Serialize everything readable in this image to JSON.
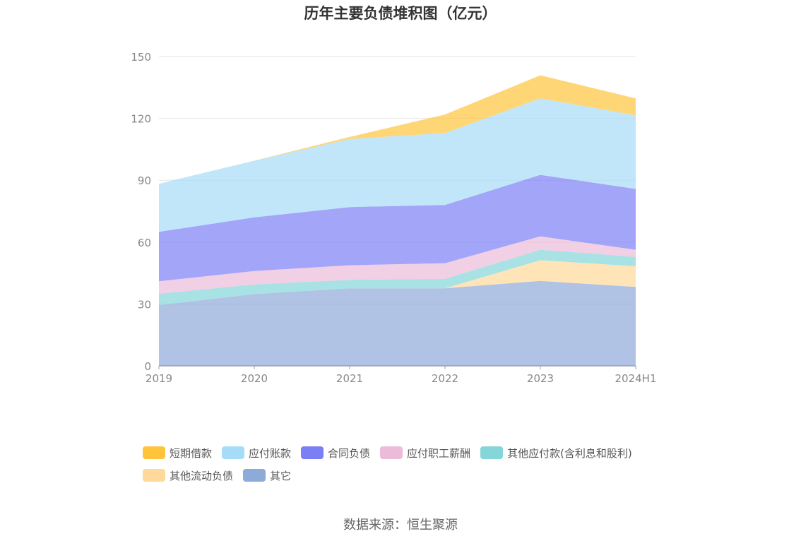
{
  "chart_data": {
    "type": "area",
    "stacked": true,
    "title": "历年主要负债堆积图（亿元）",
    "source": "数据来源：恒生聚源",
    "x": [
      "2019",
      "2020",
      "2021",
      "2022",
      "2023",
      "2024H1"
    ],
    "ylim": [
      0,
      150
    ],
    "yticks": [
      "0",
      "30",
      "60",
      "90",
      "120",
      "150"
    ],
    "grid": true,
    "legend_position": "bottom",
    "series": [
      {
        "name": "其它",
        "values": [
          29.5,
          34.8,
          37.6,
          37.6,
          41.2,
          38.3
        ],
        "color": "#8eaad8"
      },
      {
        "name": "其他流动负债",
        "values": [
          0,
          0,
          0,
          0,
          10.0,
          10.0
        ],
        "color": "#ffd89a"
      },
      {
        "name": "其他应付款(含利息和股利)",
        "values": [
          5.5,
          4.7,
          4.1,
          4.6,
          5.1,
          4.5
        ],
        "color": "#85d6d8"
      },
      {
        "name": "应付职工薪酬",
        "values": [
          6.0,
          6.5,
          7.1,
          7.6,
          6.5,
          3.5
        ],
        "color": "#ebbbd9"
      },
      {
        "name": "合同负债",
        "values": [
          24.0,
          26.0,
          28.2,
          28.2,
          29.8,
          29.5
        ],
        "color": "#7b7ff5"
      },
      {
        "name": "应付账款",
        "values": [
          23.3,
          27.5,
          33.0,
          34.9,
          37.1,
          35.7
        ],
        "color": "#a6dcf8"
      },
      {
        "name": "短期借款",
        "values": [
          0,
          0,
          1.0,
          9.0,
          11.2,
          8.2
        ],
        "color": "#ffc43c"
      }
    ],
    "legend_order": [
      "短期借款",
      "应付账款",
      "合同负债",
      "应付职工薪酬",
      "其他应付款(含利息和股利)",
      "其他流动负债",
      "其它"
    ]
  }
}
